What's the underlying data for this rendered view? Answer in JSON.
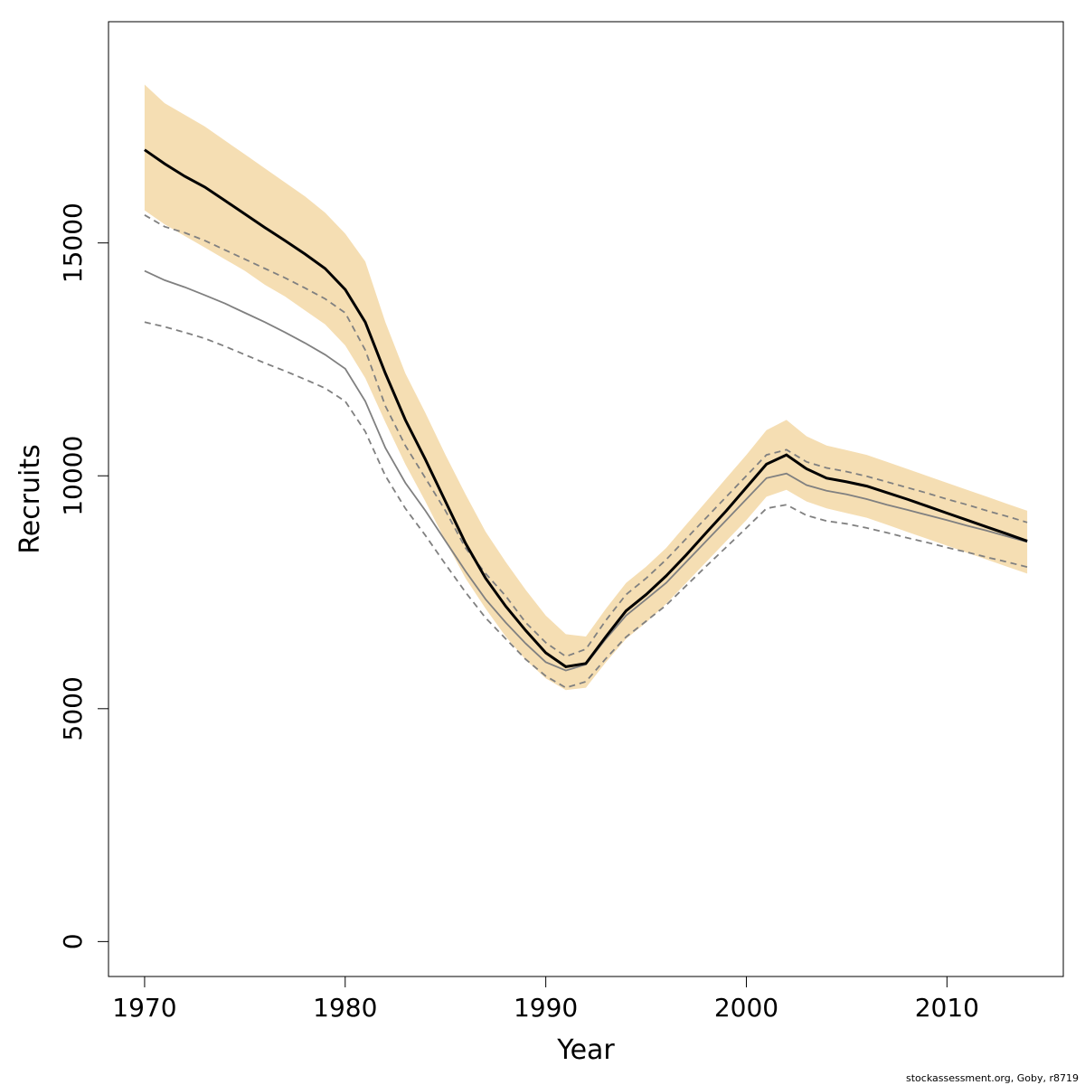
{
  "chart_data": {
    "type": "line",
    "xlabel": "Year",
    "ylabel": "Recruits",
    "xlim": [
      1968.2,
      2015.8
    ],
    "ylim": [
      -750,
      19750
    ],
    "x_ticks": [
      1970,
      1980,
      1990,
      2000,
      2010
    ],
    "x_tick_labels": [
      "1970",
      "1980",
      "1990",
      "2000",
      "2010"
    ],
    "y_ticks": [
      0,
      5000,
      10000,
      15000
    ],
    "y_tick_labels": [
      "0",
      "5000",
      "10000",
      "15000"
    ],
    "grid": false,
    "legend": "none",
    "credit": "stockassessment.org, Goby, r8719",
    "colors": {
      "band": "#f5deb3",
      "estimate": "#000000",
      "comparison": "#808080",
      "comparison_ci": "#808080",
      "axis": "#000000"
    },
    "years": [
      1970,
      1971,
      1972,
      1973,
      1974,
      1975,
      1976,
      1977,
      1978,
      1979,
      1980,
      1981,
      1982,
      1983,
      1984,
      1985,
      1986,
      1987,
      1988,
      1989,
      1990,
      1991,
      1992,
      1993,
      1994,
      1995,
      1996,
      1997,
      1998,
      1999,
      2000,
      2001,
      2002,
      2003,
      2004,
      2005,
      2006,
      2007,
      2008,
      2009,
      2010,
      2011,
      2012,
      2013,
      2014
    ],
    "estimate": [
      17000,
      16700,
      16430,
      16200,
      15910,
      15620,
      15330,
      15050,
      14760,
      14450,
      14000,
      13300,
      12200,
      11200,
      10350,
      9450,
      8550,
      7800,
      7200,
      6680,
      6200,
      5900,
      5970,
      6550,
      7100,
      7450,
      7850,
      8300,
      8780,
      9250,
      9750,
      10250,
      10450,
      10150,
      9950,
      9870,
      9780,
      9640,
      9500,
      9350,
      9200,
      9050,
      8900,
      8750,
      8600
    ],
    "ci_upper": [
      18400,
      18000,
      17750,
      17500,
      17200,
      16900,
      16600,
      16300,
      16000,
      15650,
      15200,
      14600,
      13300,
      12200,
      11350,
      10450,
      9600,
      8800,
      8150,
      7550,
      7000,
      6600,
      6550,
      7150,
      7700,
      8050,
      8450,
      8950,
      9450,
      9950,
      10450,
      10980,
      11200,
      10850,
      10650,
      10550,
      10450,
      10300,
      10150,
      10000,
      9850,
      9700,
      9550,
      9400,
      9250
    ],
    "ci_lower": [
      15700,
      15400,
      15150,
      14900,
      14650,
      14400,
      14100,
      13850,
      13550,
      13250,
      12800,
      12100,
      11150,
      10250,
      9450,
      8600,
      7800,
      7150,
      6550,
      6050,
      5650,
      5400,
      5450,
      6000,
      6500,
      6850,
      7250,
      7700,
      8150,
      8600,
      9050,
      9550,
      9700,
      9450,
      9300,
      9200,
      9100,
      8950,
      8800,
      8650,
      8500,
      8350,
      8200,
      8050,
      7900
    ],
    "comparison": [
      14400,
      14200,
      14050,
      13880,
      13700,
      13500,
      13300,
      13080,
      12850,
      12600,
      12300,
      11600,
      10600,
      9850,
      9250,
      8600,
      7950,
      7350,
      6850,
      6400,
      6000,
      5820,
      5950,
      6500,
      7000,
      7350,
      7700,
      8150,
      8600,
      9050,
      9500,
      9950,
      10050,
      9800,
      9680,
      9600,
      9500,
      9380,
      9270,
      9160,
      9050,
      8930,
      8820,
      8700,
      8580
    ],
    "comparison_upper": [
      15600,
      15350,
      15220,
      15050,
      14850,
      14650,
      14450,
      14250,
      14030,
      13800,
      13500,
      12700,
      11500,
      10650,
      9950,
      9250,
      8450,
      7900,
      7420,
      6850,
      6420,
      6120,
      6280,
      6900,
      7450,
      7800,
      8200,
      8650,
      9100,
      9550,
      10000,
      10450,
      10560,
      10300,
      10170,
      10090,
      9990,
      9870,
      9750,
      9630,
      9500,
      9380,
      9250,
      9130,
      9000
    ],
    "comparison_lower": [
      13300,
      13200,
      13080,
      12950,
      12780,
      12600,
      12420,
      12250,
      12070,
      11880,
      11600,
      10950,
      10000,
      9300,
      8720,
      8100,
      7500,
      6950,
      6500,
      6060,
      5700,
      5450,
      5580,
      6080,
      6540,
      6880,
      7220,
      7640,
      8060,
      8470,
      8880,
      9300,
      9380,
      9150,
      9030,
      8970,
      8880,
      8780,
      8670,
      8570,
      8460,
      8360,
      8250,
      8150,
      8040
    ]
  }
}
